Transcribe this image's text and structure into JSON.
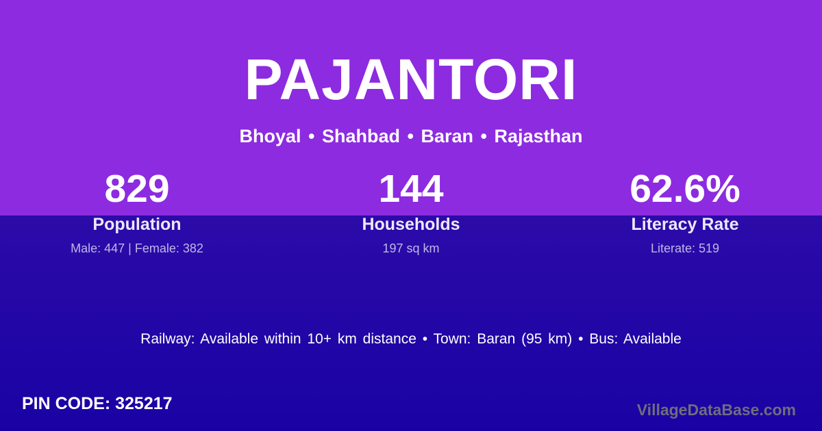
{
  "header": {
    "title": "PAJANTORI",
    "location_path": "Bhoyal • Shahbad • Baran • Rajasthan"
  },
  "stats": [
    {
      "value": "829",
      "label": "Population",
      "detail": "Male: 447 | Female: 382"
    },
    {
      "value": "144",
      "label": "Households",
      "detail": "197 sq km"
    },
    {
      "value": "62.6%",
      "label": "Literacy Rate",
      "detail": "Literate: 519"
    }
  ],
  "transport": {
    "text": "Railway: Available within 10+ km distance  •  Town: Baran (95 km)  •  Bus: Available"
  },
  "footer": {
    "pin_code": "PIN CODE: 325217",
    "watermark": "VillageDataBase.com"
  },
  "colors": {
    "top_background": "#8d2be0",
    "bottom_background_start": "#2c0ba8",
    "bottom_background_end": "#1902a4",
    "primary_text": "#ffffff",
    "stat_label_text": "#ece8f8",
    "stat_detail_text": "#c0b6e8",
    "watermark_text": "#6f6d7c"
  }
}
